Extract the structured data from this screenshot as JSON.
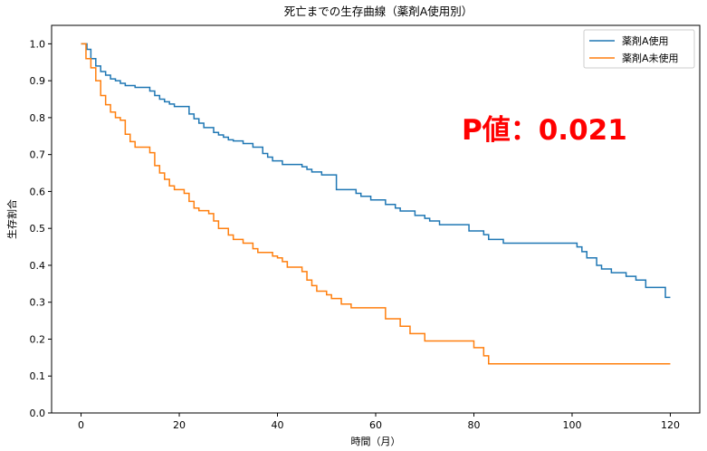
{
  "chart_data": {
    "type": "line",
    "step": true,
    "title": "死亡までの生存曲線（薬剤A使用別）",
    "xlabel": "時間（月）",
    "ylabel": "生存割合",
    "xlim": [
      -6,
      126
    ],
    "ylim": [
      0,
      1.05
    ],
    "xticks": [
      0,
      20,
      40,
      60,
      80,
      100,
      120
    ],
    "yticks": [
      0.0,
      0.1,
      0.2,
      0.3,
      0.4,
      0.5,
      0.6,
      0.7,
      0.8,
      0.9,
      1.0
    ],
    "xtick_labels": [
      "0",
      "20",
      "40",
      "60",
      "80",
      "100",
      "120"
    ],
    "ytick_labels": [
      "0.0",
      "0.1",
      "0.2",
      "0.3",
      "0.4",
      "0.5",
      "0.6",
      "0.7",
      "0.8",
      "0.9",
      "1.0"
    ],
    "grid": false,
    "legend_position": "top-right",
    "annotation": "P値：0.021",
    "series": [
      {
        "name": "薬剤A使用",
        "color": "#1f77b4",
        "x": [
          0,
          1.2,
          2,
          3,
          4,
          5,
          6,
          7,
          8,
          9,
          11,
          14,
          15,
          16,
          17,
          18,
          19,
          22,
          23,
          24,
          25,
          27,
          28,
          29,
          30,
          31,
          33,
          35,
          37,
          38,
          39,
          41,
          45,
          46,
          47,
          49,
          52,
          56,
          57,
          59,
          62,
          64,
          65,
          68,
          70,
          71,
          73,
          79,
          82,
          83,
          86,
          101,
          102,
          103,
          105,
          106,
          108,
          111,
          113,
          115,
          119,
          120
        ],
        "y": [
          1.0,
          0.985,
          0.96,
          0.94,
          0.925,
          0.915,
          0.905,
          0.9,
          0.893,
          0.887,
          0.882,
          0.872,
          0.86,
          0.85,
          0.843,
          0.837,
          0.83,
          0.81,
          0.797,
          0.785,
          0.773,
          0.76,
          0.753,
          0.747,
          0.74,
          0.737,
          0.73,
          0.72,
          0.703,
          0.693,
          0.683,
          0.673,
          0.667,
          0.66,
          0.653,
          0.645,
          0.605,
          0.595,
          0.587,
          0.577,
          0.565,
          0.555,
          0.547,
          0.535,
          0.527,
          0.52,
          0.51,
          0.493,
          0.483,
          0.47,
          0.46,
          0.45,
          0.437,
          0.42,
          0.4,
          0.39,
          0.38,
          0.37,
          0.36,
          0.34,
          0.313,
          0.313
        ]
      },
      {
        "name": "薬剤A未使用",
        "color": "#ff7f0e",
        "x": [
          0,
          1,
          2,
          3,
          4,
          5,
          6,
          7,
          8,
          9,
          10,
          11,
          12,
          14,
          15,
          16,
          17,
          18,
          19,
          21,
          22,
          23,
          24,
          26,
          27,
          28,
          30,
          31,
          33,
          35,
          36,
          39,
          40,
          41,
          42,
          45,
          46,
          47,
          48,
          50,
          51,
          53,
          55,
          62,
          65,
          67,
          70,
          80,
          82,
          83,
          120
        ],
        "y": [
          1.0,
          0.96,
          0.935,
          0.9,
          0.86,
          0.835,
          0.815,
          0.8,
          0.793,
          0.755,
          0.735,
          0.72,
          0.72,
          0.705,
          0.67,
          0.65,
          0.633,
          0.615,
          0.605,
          0.595,
          0.573,
          0.555,
          0.548,
          0.54,
          0.52,
          0.5,
          0.482,
          0.47,
          0.46,
          0.445,
          0.435,
          0.425,
          0.42,
          0.41,
          0.395,
          0.383,
          0.36,
          0.345,
          0.33,
          0.32,
          0.31,
          0.295,
          0.285,
          0.255,
          0.235,
          0.215,
          0.195,
          0.177,
          0.155,
          0.133,
          0.133
        ]
      }
    ]
  }
}
